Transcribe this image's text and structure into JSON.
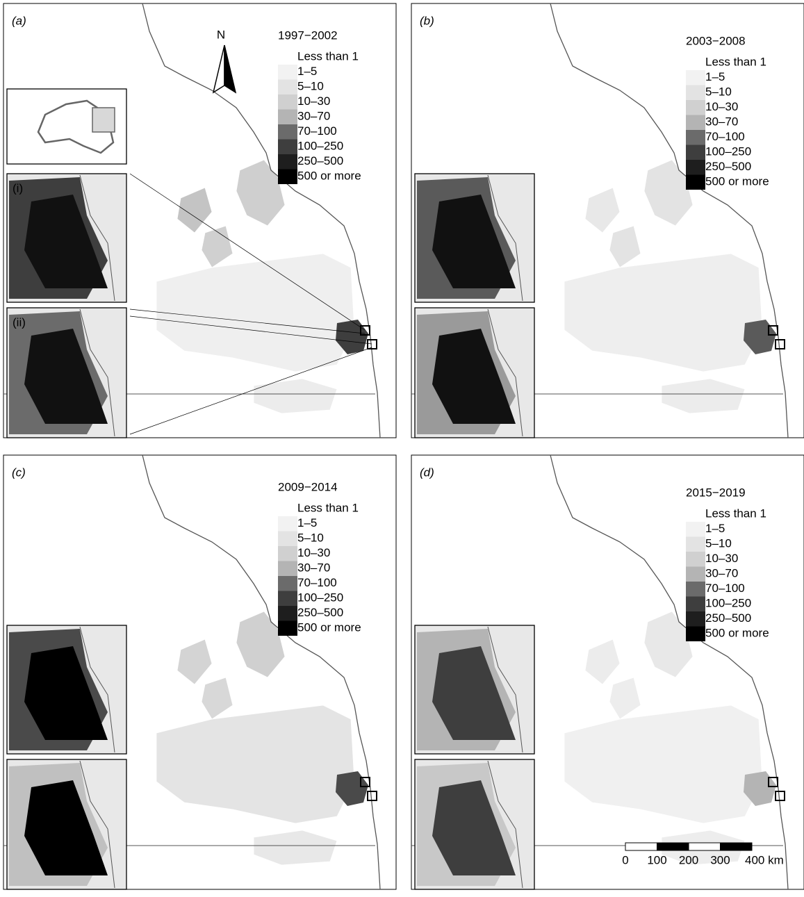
{
  "panels": [
    {
      "label": "(a)",
      "period": "1997−2002"
    },
    {
      "label": "(b)",
      "period": "2003−2008"
    },
    {
      "label": "(c)",
      "period": "2009−2014"
    },
    {
      "label": "(d)",
      "period": "2015−2019"
    }
  ],
  "legend": {
    "entries": [
      "Less than 1",
      "1–5",
      "5–10",
      "10–30",
      "30–70",
      "70–100",
      "100–250",
      "250–500",
      "500 or more"
    ],
    "colors": [
      "#ffffff",
      "#f2f2f2",
      "#e3e3e3",
      "#d0d0d0",
      "#b4b4b4",
      "#6b6b6b",
      "#3e3e3e",
      "#1e1e1e",
      "#000000"
    ]
  },
  "north": "N",
  "insets": {
    "labels": [
      "(i)",
      "(ii)"
    ]
  },
  "scale_bar": {
    "labels": [
      "0",
      "100",
      "200",
      "300",
      "400 km"
    ]
  }
}
